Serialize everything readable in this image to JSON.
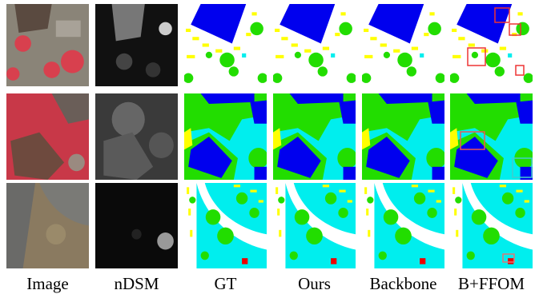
{
  "columns": [
    "Image",
    "nDSM",
    "GT",
    "Ours",
    "Backbone",
    "B+FFOM"
  ]
}
